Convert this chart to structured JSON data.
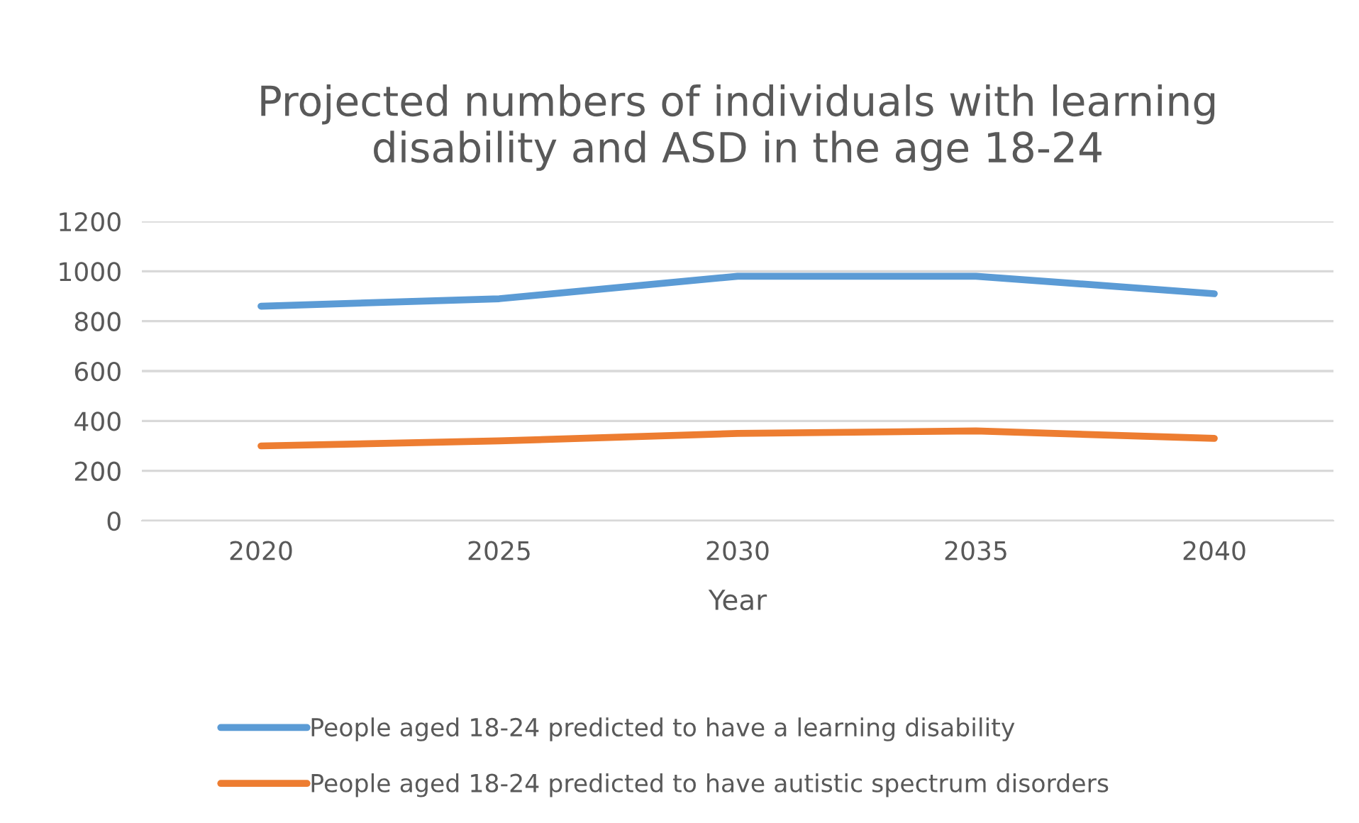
{
  "chart_data": {
    "type": "line",
    "title": "Projected numbers of individuals with learning\ndisability and ASD in the age 18-24",
    "xlabel": "Year",
    "categories": [
      "2020",
      "2025",
      "2030",
      "2035",
      "2040"
    ],
    "series": [
      {
        "name": "People aged 18-24 predicted to have a learning disability",
        "color": "#5b9bd5",
        "values": [
          860,
          890,
          980,
          980,
          910
        ]
      },
      {
        "name": "People aged 18-24 predicted to have autistic spectrum disorders",
        "color": "#ed7d31",
        "values": [
          300,
          320,
          350,
          360,
          330
        ]
      }
    ],
    "ylim": [
      0,
      1200
    ],
    "yticks": [
      0,
      200,
      400,
      600,
      800,
      1000,
      1200
    ],
    "grid": "y",
    "legend": "bottom",
    "marker": "none",
    "line_style": "solid"
  }
}
